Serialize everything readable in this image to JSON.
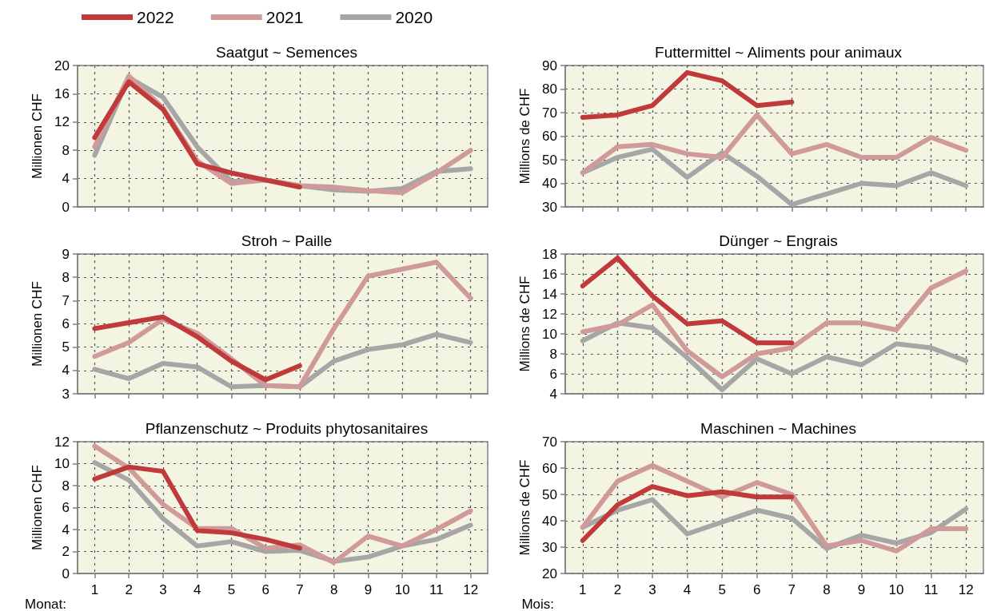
{
  "chart_data": [
    {
      "type": "line",
      "title": "Saatgut ~ Semences",
      "ylabel": "Millionen CHF",
      "x": [
        1,
        2,
        3,
        4,
        5,
        6,
        7,
        8,
        9,
        10,
        11,
        12
      ],
      "xlim": [
        0.5,
        12.5
      ],
      "xticks": [
        1,
        2,
        3,
        4,
        5,
        6,
        7,
        8,
        9,
        10,
        11,
        12
      ],
      "ylim": [
        0,
        20
      ],
      "yticks": [
        0,
        4,
        8,
        12,
        16,
        20
      ],
      "grid": true,
      "legend": "top left",
      "tick_labels": "y",
      "series": [
        {
          "name": "2022",
          "color": "#c0393b",
          "values": [
            9.8,
            17.7,
            13.8,
            6.1,
            4.8,
            3.8,
            2.8,
            null,
            null,
            null,
            null,
            null
          ]
        },
        {
          "name": "2021",
          "color": "#d09a9b",
          "values": [
            8.5,
            18.5,
            14,
            6.5,
            3.3,
            3.8,
            3.0,
            2.8,
            2.3,
            2.0,
            4.8,
            8.0
          ]
        },
        {
          "name": "2020",
          "color": "#a6a6a6",
          "values": [
            7.3,
            18.3,
            15.5,
            8.5,
            3.6,
            3.8,
            3.0,
            2.4,
            2.2,
            2.6,
            5.0,
            5.4
          ]
        }
      ]
    },
    {
      "type": "line",
      "title": "Futtermittel ~ Aliments pour animaux",
      "ylabel": "Millions de CHF",
      "x": [
        1,
        2,
        3,
        4,
        5,
        6,
        7,
        8,
        9,
        10,
        11,
        12
      ],
      "xlim": [
        0.5,
        12.5
      ],
      "xticks": [
        1,
        2,
        3,
        4,
        5,
        6,
        7,
        8,
        9,
        10,
        11,
        12
      ],
      "ylim": [
        30,
        90
      ],
      "yticks": [
        30,
        40,
        50,
        60,
        70,
        80,
        90
      ],
      "grid": true,
      "tick_labels": "y",
      "series": [
        {
          "color": "#c0393b",
          "values": [
            68,
            69,
            73,
            87,
            83.5,
            73,
            74.5,
            null,
            null,
            null,
            null,
            null
          ]
        },
        {
          "color": "#d09a9b",
          "values": [
            44.5,
            55.5,
            56.5,
            52.5,
            51,
            69,
            52.5,
            56.5,
            51,
            51,
            59.5,
            54
          ]
        },
        {
          "color": "#a6a6a6",
          "values": [
            44.5,
            51,
            54.5,
            42.5,
            53,
            43,
            31,
            35.5,
            40,
            39,
            44.5,
            39
          ]
        }
      ]
    },
    {
      "type": "line",
      "title": "Stroh ~ Paille",
      "ylabel": "Millionen CHF",
      "x": [
        1,
        2,
        3,
        4,
        5,
        6,
        7,
        8,
        9,
        10,
        11,
        12
      ],
      "xlim": [
        0.5,
        12.5
      ],
      "xticks": [
        1,
        2,
        3,
        4,
        5,
        6,
        7,
        8,
        9,
        10,
        11,
        12
      ],
      "ylim": [
        3,
        9
      ],
      "yticks": [
        3,
        4,
        5,
        6,
        7,
        8,
        9
      ],
      "grid": true,
      "tick_labels": "y",
      "series": [
        {
          "color": "#c0393b",
          "values": [
            5.8,
            6.05,
            6.3,
            5.45,
            4.4,
            3.6,
            4.2,
            null,
            null,
            null,
            null,
            null
          ]
        },
        {
          "color": "#d09a9b",
          "values": [
            4.6,
            5.2,
            6.2,
            5.6,
            4.5,
            3.35,
            3.3,
            5.8,
            8.05,
            8.35,
            8.65,
            7.1
          ]
        },
        {
          "color": "#a6a6a6",
          "values": [
            4.05,
            3.65,
            4.3,
            4.15,
            3.3,
            3.35,
            3.3,
            4.4,
            4.9,
            5.1,
            5.55,
            5.2
          ]
        }
      ]
    },
    {
      "type": "line",
      "title": "Dünger ~ Engrais",
      "ylabel": "Millions de CHF",
      "x": [
        1,
        2,
        3,
        4,
        5,
        6,
        7,
        8,
        9,
        10,
        11,
        12
      ],
      "xlim": [
        0.5,
        12.5
      ],
      "xticks": [
        1,
        2,
        3,
        4,
        5,
        6,
        7,
        8,
        9,
        10,
        11,
        12
      ],
      "ylim": [
        4,
        18
      ],
      "yticks": [
        4,
        6,
        8,
        10,
        12,
        14,
        16,
        18
      ],
      "grid": true,
      "tick_labels": "y",
      "series": [
        {
          "color": "#c0393b",
          "values": [
            14.8,
            17.6,
            13.8,
            11.0,
            11.3,
            9.1,
            9.1,
            null,
            null,
            null,
            null,
            null
          ]
        },
        {
          "color": "#d09a9b",
          "values": [
            10.2,
            10.9,
            12.9,
            8.3,
            5.7,
            8.0,
            8.6,
            11.1,
            11.1,
            10.4,
            14.6,
            16.3
          ]
        },
        {
          "color": "#a6a6a6",
          "values": [
            9.3,
            11.1,
            10.6,
            7.6,
            4.4,
            7.5,
            6.0,
            7.7,
            6.9,
            9.0,
            8.6,
            7.3
          ]
        }
      ]
    },
    {
      "type": "line",
      "title": "Pflanzenschutz ~ Produits phytosanitaires",
      "ylabel": "Millionen CHF",
      "xlabel": "Monat:",
      "x": [
        1,
        2,
        3,
        4,
        5,
        6,
        7,
        8,
        9,
        10,
        11,
        12
      ],
      "xlim": [
        0.5,
        12.5
      ],
      "xticks": [
        1,
        2,
        3,
        4,
        5,
        6,
        7,
        8,
        9,
        10,
        11,
        12
      ],
      "ylim": [
        0,
        12
      ],
      "yticks": [
        0,
        2,
        4,
        6,
        8,
        10,
        12
      ],
      "grid": true,
      "series": [
        {
          "color": "#c0393b",
          "values": [
            8.6,
            9.7,
            9.3,
            3.9,
            3.7,
            3.1,
            2.3,
            null,
            null,
            null,
            null,
            null
          ]
        },
        {
          "color": "#d09a9b",
          "values": [
            11.6,
            9.6,
            6.3,
            4.1,
            4.1,
            2.3,
            2.6,
            1.0,
            3.4,
            2.5,
            4.0,
            5.7
          ]
        },
        {
          "color": "#a6a6a6",
          "values": [
            10.1,
            8.5,
            5.0,
            2.5,
            2.9,
            2.0,
            2.1,
            1.1,
            1.5,
            2.5,
            3.1,
            4.4
          ]
        }
      ]
    },
    {
      "type": "line",
      "title": "Maschinen ~ Machines",
      "ylabel": "Millions de CHF",
      "xlabel": "Mois:",
      "x": [
        1,
        2,
        3,
        4,
        5,
        6,
        7,
        8,
        9,
        10,
        11,
        12
      ],
      "xlim": [
        0.5,
        12.5
      ],
      "xticks": [
        1,
        2,
        3,
        4,
        5,
        6,
        7,
        8,
        9,
        10,
        11,
        12
      ],
      "ylim": [
        20,
        70
      ],
      "yticks": [
        20,
        30,
        40,
        50,
        60,
        70
      ],
      "grid": true,
      "series": [
        {
          "color": "#c0393b",
          "values": [
            32.5,
            46,
            53,
            49.5,
            51,
            49,
            49,
            null,
            null,
            null,
            null,
            null
          ]
        },
        {
          "color": "#d09a9b",
          "values": [
            37.5,
            55,
            61,
            55,
            49,
            54.5,
            50,
            30.5,
            32.5,
            28.5,
            37,
            37
          ]
        },
        {
          "color": "#a6a6a6",
          "values": [
            37.5,
            44,
            48,
            35,
            39.5,
            44,
            41,
            29.5,
            34.5,
            31.5,
            35.5,
            44.5
          ]
        }
      ]
    }
  ]
}
